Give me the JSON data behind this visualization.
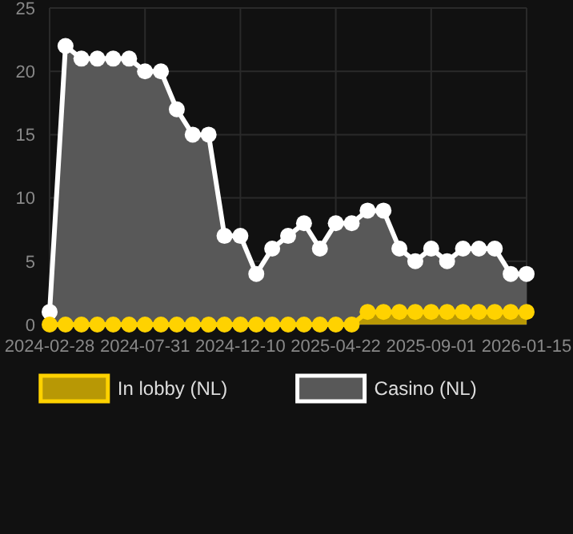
{
  "chart_data": {
    "type": "area",
    "categories": [
      "2024-02-28",
      null,
      null,
      null,
      null,
      null,
      "2024-07-31",
      null,
      null,
      null,
      null,
      null,
      "2024-12-10",
      null,
      null,
      null,
      null,
      null,
      "2025-04-22",
      null,
      null,
      null,
      null,
      null,
      "2025-09-01",
      null,
      null,
      null,
      null,
      null,
      "2026-01-15"
    ],
    "series": [
      {
        "name": "In lobby (NL)",
        "color": "#ffd200",
        "values": [
          0,
          0,
          0,
          0,
          0,
          0,
          0,
          0,
          0,
          0,
          0,
          0,
          0,
          0,
          0,
          0,
          0,
          0,
          0,
          0,
          1,
          1,
          1,
          1,
          1,
          1,
          1,
          1,
          1,
          1,
          1
        ]
      },
      {
        "name": "Casino (NL)",
        "color": "#ffffff",
        "values": [
          1,
          22,
          21,
          21,
          21,
          21,
          20,
          20,
          17,
          15,
          15,
          7,
          7,
          4,
          6,
          7,
          8,
          6,
          8,
          8,
          9,
          9,
          6,
          5,
          6,
          5,
          6,
          6,
          6,
          4,
          4
        ]
      }
    ],
    "ylim": [
      0,
      25
    ],
    "yticks": [
      0,
      5,
      10,
      15,
      20,
      25
    ],
    "grid": true,
    "legend": "bottom",
    "marker": "circle"
  }
}
